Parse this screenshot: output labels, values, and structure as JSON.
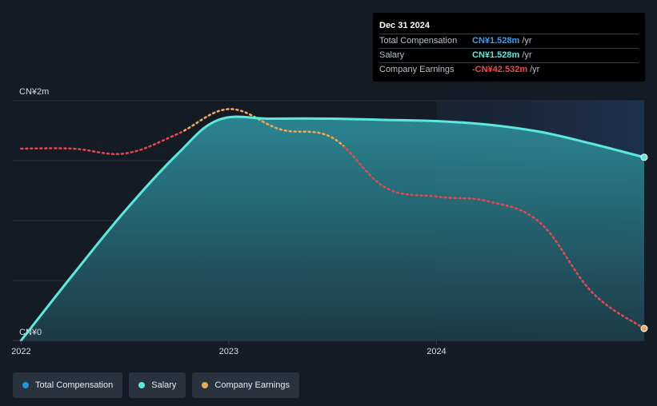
{
  "chart_data": {
    "type": "area",
    "title": "",
    "xlabel": "",
    "ylabel": "",
    "ylim": [
      0,
      2
    ],
    "xlim": [
      2021.96,
      2025.0
    ],
    "y_unit": "CN¥m",
    "y_tick_labels": [
      {
        "value": 2,
        "label": "CN¥2m"
      },
      {
        "value": 0,
        "label": "CN¥0"
      }
    ],
    "x_ticks": [
      {
        "value": 2022,
        "label": "2022"
      },
      {
        "value": 2023,
        "label": "2023"
      },
      {
        "value": 2024,
        "label": "2024"
      }
    ],
    "series": [
      {
        "name": "Total Compensation",
        "color": "#2394df",
        "x": [
          2022.0,
          2022.25,
          2022.5,
          2022.75,
          2022.95,
          2023.2,
          2023.5,
          2023.75,
          2024.0,
          2024.25,
          2024.5,
          2024.75,
          2025.0
        ],
        "values": [
          0.0,
          0.55,
          1.08,
          1.55,
          1.84,
          1.85,
          1.85,
          1.84,
          1.83,
          1.8,
          1.74,
          1.64,
          1.528
        ]
      },
      {
        "name": "Salary",
        "color": "#5ee8dc",
        "x": [
          2022.0,
          2022.25,
          2022.5,
          2022.75,
          2022.95,
          2023.2,
          2023.5,
          2023.75,
          2024.0,
          2024.25,
          2024.5,
          2024.75,
          2025.0
        ],
        "values": [
          0.0,
          0.55,
          1.08,
          1.55,
          1.84,
          1.85,
          1.85,
          1.84,
          1.83,
          1.8,
          1.74,
          1.64,
          1.528
        ]
      },
      {
        "name": "Company Earnings",
        "color": "#e24a4f",
        "style": "dotted",
        "x": [
          2022.0,
          2022.25,
          2022.5,
          2022.75,
          2023.0,
          2023.25,
          2023.5,
          2023.75,
          2024.0,
          2024.25,
          2024.5,
          2024.75,
          2025.0
        ],
        "values": [
          1.6,
          1.6,
          1.56,
          1.72,
          1.93,
          1.76,
          1.69,
          1.28,
          1.2,
          1.16,
          0.98,
          0.4,
          0.1
        ]
      }
    ],
    "shaded_region": {
      "from": 2024.0,
      "to": 2025.0
    },
    "tooltip": {
      "date": "Dec 31 2024",
      "rows": [
        {
          "label": "Total Compensation",
          "value": "CN¥1.528m",
          "unit": "/yr",
          "color": "#3b9ff0"
        },
        {
          "label": "Salary",
          "value": "CN¥1.528m",
          "unit": "/yr",
          "color": "#5ee8dc"
        },
        {
          "label": "Company Earnings",
          "value": "-CN¥42.532m",
          "unit": "/yr",
          "color": "#ef4b4b"
        }
      ]
    },
    "legend": [
      {
        "label": "Total Compensation",
        "color": "#2394df"
      },
      {
        "label": "Salary",
        "color": "#5ee8dc"
      },
      {
        "label": "Company Earnings",
        "color": "#e8a95d"
      }
    ]
  }
}
